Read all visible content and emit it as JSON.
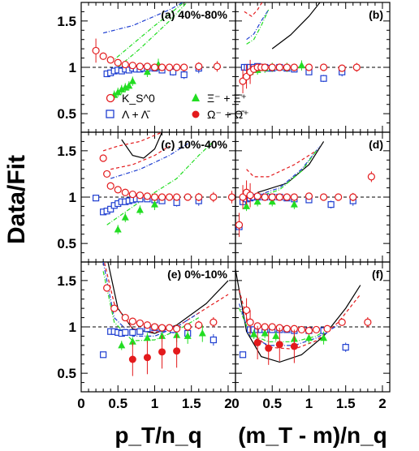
{
  "chart_data": {
    "type": "scatter",
    "ylabel": "Data/Fit",
    "xlabel_left": "p_T/n_q",
    "xlabel_right": "(m_T - m)/n_q",
    "xlim": [
      0,
      2.1
    ],
    "ylim": [
      0.3,
      1.7
    ],
    "reference_line": 1,
    "x_ticks": [
      "0",
      "0.5",
      "1",
      "1.5",
      "2"
    ],
    "y_ticks": [
      "0.5",
      "1",
      "1.5"
    ],
    "legend": [
      {
        "name": "K_S^0",
        "marker": "open-circle",
        "color": "#e31a1c"
      },
      {
        "name": "Ξ⁻ + Ξ̄⁺",
        "marker": "filled-triangle",
        "color": "#22dd22"
      },
      {
        "name": "Λ + Λ̄",
        "marker": "open-square",
        "color": "#1f3fd1"
      },
      {
        "name": "Ω⁻ + Ω̄⁺",
        "marker": "filled-circle",
        "color": "#e31a1c"
      }
    ],
    "colors": {
      "kaon": "#e31a1c",
      "xi": "#22dd22",
      "lambda": "#1f3fd1",
      "omega": "#e31a1c"
    },
    "panels": [
      {
        "label": "(a) 40%-80%",
        "kaon": [
          [
            0.2,
            1.18
          ],
          [
            0.3,
            1.12
          ],
          [
            0.4,
            1.08
          ],
          [
            0.5,
            1.05
          ],
          [
            0.6,
            1.03
          ],
          [
            0.7,
            1.02
          ],
          [
            0.8,
            1.01
          ],
          [
            0.9,
            1.01
          ],
          [
            1.0,
            1.0
          ],
          [
            1.1,
            1.0
          ],
          [
            1.2,
            1.0
          ],
          [
            1.3,
            1.0
          ],
          [
            1.4,
            1.0
          ],
          [
            1.6,
            1.01
          ],
          [
            1.85,
            1.01
          ]
        ],
        "lambda": [
          [
            0.35,
            0.93
          ],
          [
            0.4,
            0.94
          ],
          [
            0.45,
            0.96
          ],
          [
            0.5,
            0.97
          ],
          [
            0.55,
            0.96
          ],
          [
            0.6,
            0.98
          ],
          [
            0.65,
            0.97
          ],
          [
            0.7,
            0.99
          ],
          [
            0.75,
            0.98
          ],
          [
            0.8,
            0.98
          ],
          [
            0.85,
            0.99
          ],
          [
            0.9,
            0.99
          ],
          [
            1.0,
            0.99
          ],
          [
            1.1,
            0.97
          ],
          [
            1.25,
            0.95
          ],
          [
            1.4,
            0.92
          ],
          [
            1.6,
            0.99
          ]
        ],
        "xi": [
          [
            0.45,
            0.7
          ],
          [
            0.5,
            0.73
          ],
          [
            0.55,
            0.76
          ],
          [
            0.6,
            0.78
          ],
          [
            0.65,
            0.8
          ],
          [
            0.7,
            0.85
          ],
          [
            0.9,
            0.95
          ],
          [
            1.05,
            1.03
          ]
        ],
        "omega": []
      },
      {
        "label": "(b)",
        "kaon": [
          [
            0.1,
            0.85
          ],
          [
            0.15,
            0.9
          ],
          [
            0.2,
            0.95
          ],
          [
            0.25,
            0.98
          ],
          [
            0.3,
            1.0
          ],
          [
            0.35,
            1.0
          ],
          [
            0.4,
            1.0
          ],
          [
            0.5,
            1.0
          ],
          [
            0.6,
            1.0
          ],
          [
            0.7,
            1.0
          ],
          [
            0.8,
            1.0
          ],
          [
            1.0,
            1.0
          ],
          [
            1.2,
            1.0
          ],
          [
            1.45,
            0.99
          ],
          [
            1.65,
            1.0
          ]
        ],
        "lambda": [
          [
            0.12,
            1.0
          ],
          [
            0.16,
            1.0
          ],
          [
            0.2,
            1.0
          ],
          [
            0.25,
            1.0
          ],
          [
            0.3,
            1.01
          ],
          [
            0.35,
            1.0
          ],
          [
            0.4,
            1.0
          ],
          [
            0.45,
            0.99
          ],
          [
            0.5,
            0.99
          ],
          [
            0.6,
            1.0
          ],
          [
            0.7,
            0.99
          ],
          [
            0.8,
            0.98
          ],
          [
            1.0,
            0.95
          ],
          [
            1.2,
            0.88
          ],
          [
            1.45,
            0.95
          ]
        ],
        "xi": [
          [
            0.2,
            0.95
          ],
          [
            0.3,
            0.97
          ],
          [
            0.4,
            0.99
          ],
          [
            0.5,
            1.0
          ],
          [
            0.7,
            1.0
          ],
          [
            0.9,
            1.02
          ]
        ],
        "omega": []
      },
      {
        "label": "(c) 10%-40%",
        "kaon": [
          [
            0.3,
            1.42
          ],
          [
            0.35,
            1.25
          ],
          [
            0.4,
            1.12
          ],
          [
            0.5,
            1.08
          ],
          [
            0.6,
            1.05
          ],
          [
            0.7,
            1.03
          ],
          [
            0.8,
            1.02
          ],
          [
            0.9,
            1.01
          ],
          [
            1.0,
            1.0
          ],
          [
            1.1,
            1.0
          ],
          [
            1.2,
            1.0
          ],
          [
            1.3,
            1.0
          ],
          [
            1.45,
            1.0
          ],
          [
            1.6,
            1.0
          ],
          [
            1.8,
            1.0
          ],
          [
            2.05,
            1.0
          ]
        ],
        "lambda": [
          [
            0.2,
            0.99
          ],
          [
            0.3,
            0.84
          ],
          [
            0.35,
            0.85
          ],
          [
            0.4,
            0.87
          ],
          [
            0.45,
            0.91
          ],
          [
            0.5,
            0.93
          ],
          [
            0.55,
            0.95
          ],
          [
            0.6,
            0.95
          ],
          [
            0.65,
            0.96
          ],
          [
            0.7,
            0.97
          ],
          [
            0.75,
            0.98
          ],
          [
            0.8,
            0.98
          ],
          [
            0.9,
            0.98
          ],
          [
            1.0,
            0.97
          ],
          [
            1.1,
            0.96
          ],
          [
            1.3,
            0.94
          ],
          [
            1.6,
            0.96
          ]
        ],
        "xi": [
          [
            0.5,
            0.65
          ],
          [
            0.6,
            0.78
          ],
          [
            0.8,
            0.86
          ],
          [
            1.0,
            0.92
          ]
        ],
        "omega": []
      },
      {
        "label": "(d)",
        "kaon": [
          [
            0.05,
            0.7
          ],
          [
            0.1,
            1.0
          ],
          [
            0.15,
            1.05
          ],
          [
            0.2,
            1.02
          ],
          [
            0.3,
            1.01
          ],
          [
            0.4,
            1.0
          ],
          [
            0.5,
            1.0
          ],
          [
            0.6,
            1.0
          ],
          [
            0.7,
            1.0
          ],
          [
            0.8,
            1.0
          ],
          [
            1.0,
            1.01
          ],
          [
            1.2,
            1.0
          ],
          [
            1.4,
            1.0
          ],
          [
            1.6,
            1.0
          ],
          [
            1.85,
            1.22
          ]
        ],
        "lambda": [
          [
            0.05,
            0.68
          ],
          [
            0.1,
            0.95
          ],
          [
            0.15,
            0.98
          ],
          [
            0.2,
            0.99
          ],
          [
            0.25,
            1.0
          ],
          [
            0.3,
            1.0
          ],
          [
            0.4,
            1.0
          ],
          [
            0.5,
            1.0
          ],
          [
            0.6,
            1.0
          ],
          [
            0.7,
            0.99
          ],
          [
            0.8,
            0.98
          ],
          [
            1.0,
            0.97
          ],
          [
            1.3,
            0.92
          ],
          [
            1.6,
            0.96
          ]
        ],
        "xi": [
          [
            0.15,
            0.9
          ],
          [
            0.3,
            0.95
          ],
          [
            0.5,
            0.95
          ],
          [
            0.8,
            0.92
          ]
        ],
        "omega": []
      },
      {
        "label": "(e) 0%-10%",
        "kaon": [
          [
            0.35,
            1.42
          ],
          [
            0.45,
            1.2
          ],
          [
            0.6,
            1.1
          ],
          [
            0.7,
            1.06
          ],
          [
            0.8,
            1.04
          ],
          [
            0.9,
            1.02
          ],
          [
            1.0,
            1.0
          ],
          [
            1.1,
            0.99
          ],
          [
            1.2,
            0.99
          ],
          [
            1.3,
            0.98
          ],
          [
            1.45,
            1.0
          ],
          [
            1.6,
            1.02
          ],
          [
            1.8,
            1.05
          ]
        ],
        "lambda": [
          [
            0.3,
            0.7
          ],
          [
            0.4,
            0.95
          ],
          [
            0.45,
            0.95
          ],
          [
            0.5,
            0.94
          ],
          [
            0.55,
            0.93
          ],
          [
            0.6,
            0.94
          ],
          [
            0.7,
            0.94
          ],
          [
            0.8,
            0.95
          ],
          [
            0.9,
            0.98
          ],
          [
            1.0,
            0.99
          ],
          [
            1.1,
            0.98
          ],
          [
            1.25,
            0.97
          ],
          [
            1.45,
            0.93
          ],
          [
            1.8,
            0.86
          ]
        ],
        "xi": [
          [
            0.55,
            0.8
          ],
          [
            0.7,
            0.84
          ],
          [
            0.9,
            0.88
          ],
          [
            1.1,
            0.9
          ],
          [
            1.3,
            0.91
          ],
          [
            1.45,
            0.9
          ],
          [
            1.65,
            0.93
          ]
        ],
        "omega": [
          [
            0.7,
            0.65
          ],
          [
            0.9,
            0.67
          ],
          [
            1.1,
            0.73
          ],
          [
            1.3,
            0.74
          ]
        ]
      },
      {
        "label": "(f)",
        "kaon": [
          [
            0.15,
            1.18
          ],
          [
            0.2,
            1.05
          ],
          [
            0.3,
            1.01
          ],
          [
            0.4,
            1.0
          ],
          [
            0.5,
            1.0
          ],
          [
            0.6,
            0.99
          ],
          [
            0.7,
            0.98
          ],
          [
            0.8,
            0.98
          ],
          [
            0.9,
            0.97
          ],
          [
            1.0,
            0.96
          ],
          [
            1.1,
            0.97
          ],
          [
            1.25,
            0.98
          ],
          [
            1.45,
            1.05
          ],
          [
            1.8,
            1.05
          ]
        ],
        "lambda": [
          [
            0.1,
            0.7
          ],
          [
            0.2,
            0.97
          ],
          [
            0.25,
            0.97
          ],
          [
            0.3,
            0.97
          ],
          [
            0.35,
            0.97
          ],
          [
            0.4,
            0.97
          ],
          [
            0.5,
            0.97
          ],
          [
            0.6,
            0.97
          ],
          [
            0.7,
            0.97
          ],
          [
            0.8,
            0.96
          ],
          [
            1.0,
            0.96
          ],
          [
            1.2,
            0.96
          ],
          [
            1.5,
            0.78
          ]
        ],
        "xi": [
          [
            0.25,
            0.92
          ],
          [
            0.4,
            0.93
          ],
          [
            0.55,
            0.9
          ],
          [
            0.8,
            0.87
          ],
          [
            1.0,
            0.88
          ],
          [
            1.2,
            0.88
          ]
        ],
        "omega": [
          [
            0.3,
            0.83
          ],
          [
            0.45,
            0.77
          ],
          [
            0.6,
            0.81
          ],
          [
            0.8,
            0.79
          ]
        ]
      }
    ]
  }
}
